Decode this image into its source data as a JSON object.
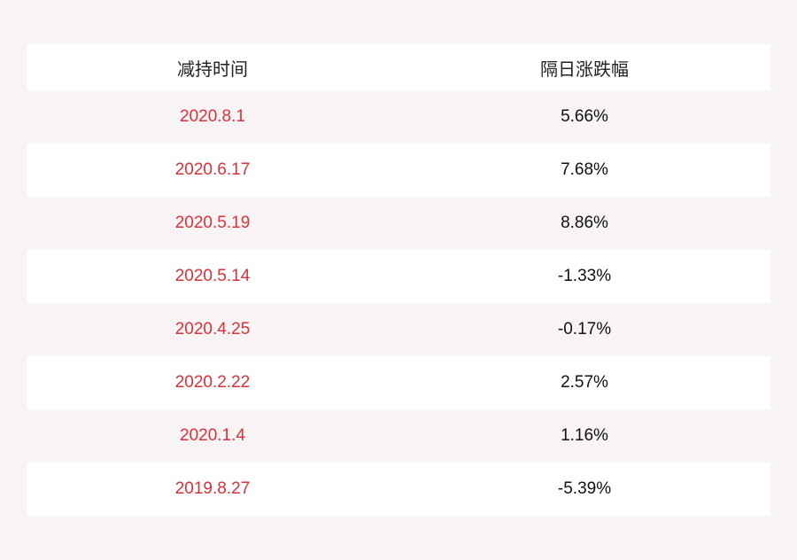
{
  "table": {
    "headers": [
      "减持时间",
      "隔日涨跌幅"
    ],
    "rows": [
      {
        "date": "2020.8.1",
        "change": "5.66%"
      },
      {
        "date": "2020.6.17",
        "change": "7.68%"
      },
      {
        "date": "2020.5.19",
        "change": "8.86%"
      },
      {
        "date": "2020.5.14",
        "change": "-1.33%"
      },
      {
        "date": "2020.4.25",
        "change": "-0.17%"
      },
      {
        "date": "2020.2.22",
        "change": "2.57%"
      },
      {
        "date": "2020.1.4",
        "change": "1.16%"
      },
      {
        "date": "2019.8.27",
        "change": "-5.39%"
      }
    ]
  },
  "colors": {
    "background": "#f8f4f5",
    "row_alt": "#ffffff",
    "date_text": "#d9323b",
    "value_text": "#111111"
  }
}
